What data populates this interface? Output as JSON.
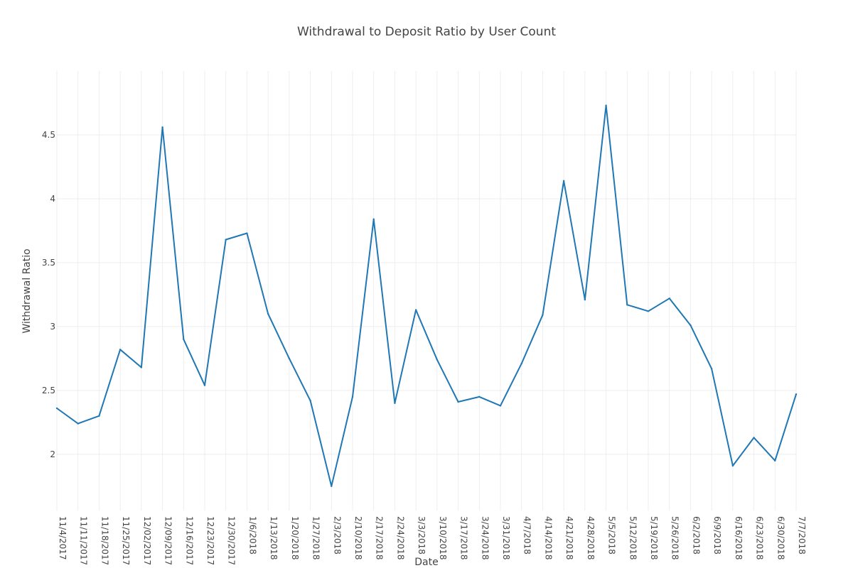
{
  "chart_data": {
    "type": "line",
    "title": "Withdrawal to Deposit Ratio by User Count",
    "xlabel": "Date",
    "ylabel": "Withdrawal Ratio",
    "x": [
      "11/4/2017",
      "11/11/2017",
      "11/18/2017",
      "11/25/2017",
      "12/02/2017",
      "12/09/2017",
      "12/16/2017",
      "12/23/2017",
      "12/30/2017",
      "1/6/2018",
      "1/13/2018",
      "1/20/2018",
      "1/27/2018",
      "2/3/2018",
      "2/10/2018",
      "2/17/2018",
      "2/24/2018",
      "3/3/2018",
      "3/10/2018",
      "3/17/2018",
      "3/24/2018",
      "3/31/2018",
      "4/7/2018",
      "4/14/2018",
      "4/21/2018",
      "4/28/2018",
      "5/5/2018",
      "5/12/2018",
      "5/19/2018",
      "5/26/2018",
      "6/2/2018",
      "6/9/2018",
      "6/16/2018",
      "6/23/2018",
      "6/30/2018",
      "7/7/2018"
    ],
    "series": [
      {
        "values": [
          2.36,
          2.24,
          2.3,
          2.82,
          2.68,
          4.56,
          2.9,
          2.54,
          3.68,
          3.73,
          3.1,
          2.75,
          2.42,
          1.75,
          2.45,
          3.84,
          2.4,
          3.13,
          2.74,
          2.41,
          2.45,
          2.38,
          2.71,
          3.09,
          4.14,
          3.21,
          4.73,
          3.17,
          3.12,
          3.22,
          3.01,
          2.67,
          1.91,
          2.13,
          1.95,
          2.47
        ]
      }
    ],
    "ylim": [
      1.56,
      5.0
    ],
    "yticks": [
      "2",
      "2.5",
      "3",
      "3.5",
      "4",
      "4.5"
    ],
    "grid": true,
    "line_color": "#1f77b4"
  }
}
